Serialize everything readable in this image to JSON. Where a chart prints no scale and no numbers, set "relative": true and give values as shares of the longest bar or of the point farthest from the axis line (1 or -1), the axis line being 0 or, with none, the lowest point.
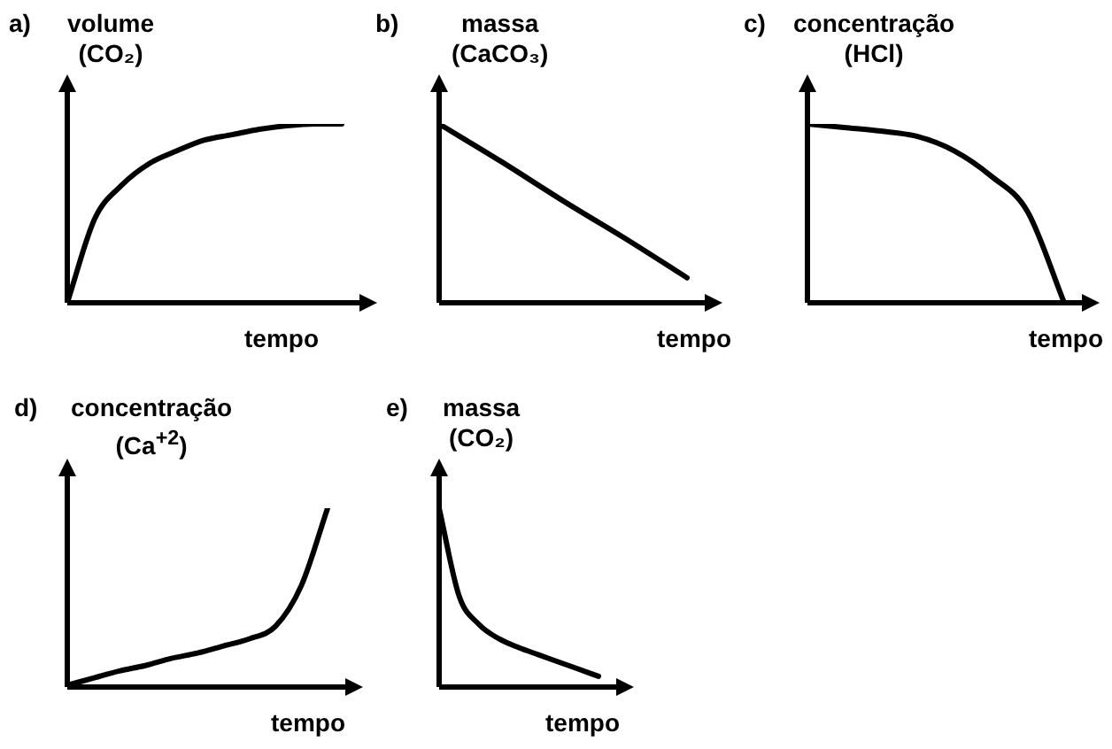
{
  "chart_data": [
    {
      "type": "line",
      "relative": true,
      "title": "a)",
      "ylabel": "volume (CO₂)",
      "xlabel": "tempo",
      "marker": "none",
      "categories": [
        null,
        null,
        null,
        null,
        null,
        null,
        null,
        null,
        null,
        null,
        null
      ],
      "series": [
        {
          "color": "#000000",
          "values": [
            0,
            0.47,
            0.66,
            0.78,
            0.85,
            0.91,
            0.94,
            0.97,
            0.99,
            1,
            1
          ]
        }
      ]
    },
    {
      "type": "line",
      "relative": true,
      "title": "b)",
      "ylabel": "massa (CaCO₃)",
      "xlabel": "tempo",
      "marker": "none",
      "categories": [
        null,
        null,
        null,
        null,
        null
      ],
      "series": [
        {
          "color": "#000000",
          "values": [
            1,
            0.79,
            0.57,
            0.36,
            0.14
          ]
        }
      ]
    },
    {
      "type": "line",
      "relative": true,
      "title": "c)",
      "ylabel": "concentração (HCl)",
      "xlabel": "tempo",
      "marker": "none",
      "categories": [
        null,
        null,
        null,
        null,
        null,
        null,
        null,
        null
      ],
      "series": [
        {
          "color": "#000000",
          "values": [
            1,
            0.98,
            0.96,
            0.93,
            0.85,
            0.71,
            0.51,
            0
          ]
        }
      ]
    },
    {
      "type": "line",
      "relative": true,
      "title": "d)",
      "ylabel": "concentração (Ca$^{+2}$)",
      "xlabel": "tempo",
      "marker": "none",
      "categories": [
        null,
        null,
        null,
        null,
        null,
        null,
        null,
        null,
        null,
        null,
        null
      ],
      "series": [
        {
          "color": "#000000",
          "values": [
            0.01,
            0.05,
            0.09,
            0.12,
            0.16,
            0.19,
            0.23,
            0.27,
            0.34,
            0.57,
            1
          ]
        }
      ]
    },
    {
      "type": "line",
      "relative": true,
      "title": "e)",
      "ylabel": "massa (CO₂)",
      "xlabel": "tempo",
      "marker": "none",
      "categories": [
        null,
        null,
        null,
        null,
        null,
        null,
        null,
        null,
        null
      ],
      "series": [
        {
          "color": "#000000",
          "values": [
            1,
            0.51,
            0.35,
            0.27,
            0.22,
            0.18,
            0.14,
            0.1,
            0.06
          ]
        }
      ]
    }
  ]
}
